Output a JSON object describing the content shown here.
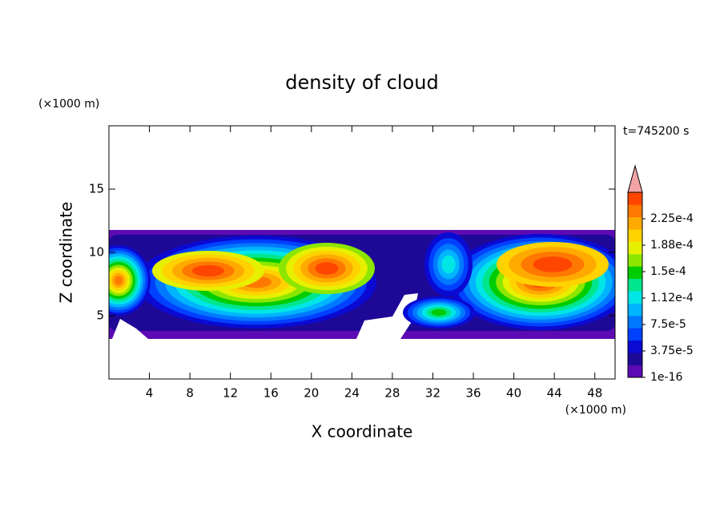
{
  "chart_data": {
    "type": "contour",
    "title": "density of cloud",
    "xlabel": "X coordinate",
    "ylabel": "Z coordinate",
    "x_unit": "(×1000 m)",
    "y_unit": "(×1000 m)",
    "annotation": "t=745200 s",
    "xlim": [
      0,
      50
    ],
    "ylim": [
      0,
      20
    ],
    "xticks": [
      4,
      8,
      12,
      16,
      20,
      24,
      28,
      32,
      36,
      40,
      44,
      48
    ],
    "yticks": [
      5,
      10,
      15
    ],
    "colorbar": {
      "clim": [
        0,
        0.0002625
      ],
      "ticks": [
        1e-16,
        {
          "value": 3.75e-05,
          "label": "3.75e-5"
        },
        {
          "value": 7.5e-05,
          "label": "7.5e-5"
        },
        {
          "value": 0.0001125,
          "label": "1.12e-4"
        },
        {
          "value": 0.00015,
          "label": "1.5e-4"
        },
        {
          "value": 0.0001875,
          "label": "1.88e-4"
        },
        {
          "value": 0.000225,
          "label": "2.25e-4"
        }
      ],
      "colors": [
        "#5c0ab4",
        "#1e0896",
        "#0a0ad2",
        "#0040ff",
        "#0078ff",
        "#00b4ff",
        "#00e6e6",
        "#00e68c",
        "#00cc00",
        "#8ce600",
        "#e6f000",
        "#ffd200",
        "#ffaa00",
        "#ff7800",
        "#ff4600"
      ],
      "extend_color": "#f4a4a4"
    }
  }
}
